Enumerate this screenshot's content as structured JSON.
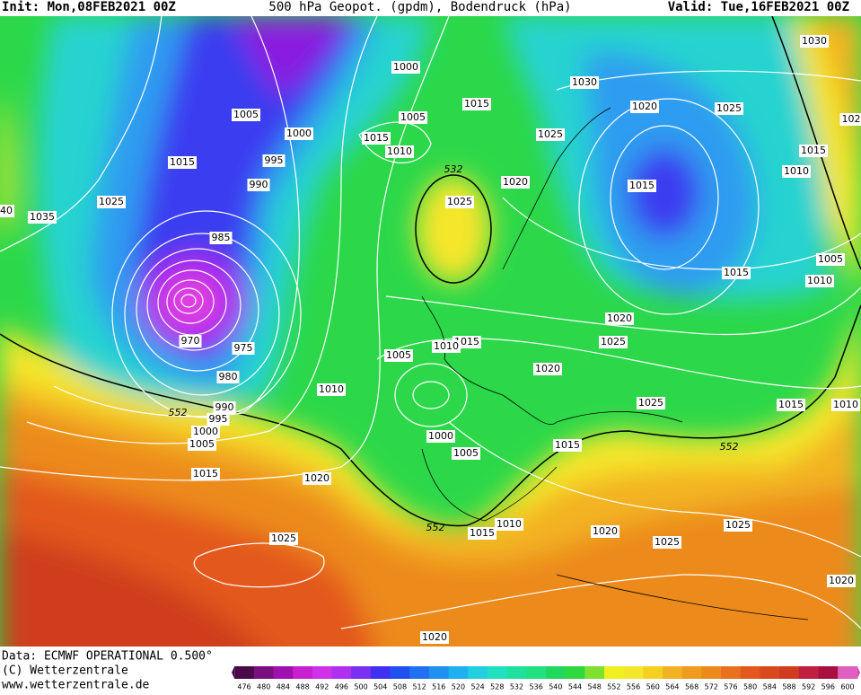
{
  "header": {
    "init": "Init: Mon,08FEB2021 00Z",
    "title": "500 hPa Geopot. (gpdm), Bodendruck (hPa)",
    "valid": "Valid: Tue,16FEB2021 00Z"
  },
  "isobar_labels": [
    "1000",
    "1030",
    "1030",
    "1005",
    "1015",
    "1020",
    "1025",
    "102",
    "1005",
    "1000",
    "1015",
    "1010",
    "1025",
    "1015",
    "1015",
    "995",
    "1010",
    "532",
    "1020",
    "990",
    "1015",
    "1025",
    "1025",
    "40",
    "1035",
    "985",
    "1005",
    "1015",
    "1010",
    "970",
    "1020",
    "1015",
    "1010",
    "1025",
    "975",
    "1005",
    "1020",
    "980",
    "1010",
    "1025",
    "1015",
    "1010",
    "552",
    "990",
    "995",
    "1000",
    "1005",
    "1000",
    "1015",
    "552",
    "1005",
    "1015",
    "1020",
    "1010",
    "552",
    "1015",
    "1020",
    "1025",
    "1025",
    "1025",
    "1020",
    "1020"
  ],
  "footer": {
    "data": "Data: ECMWF OPERATIONAL 0.500°",
    "copyright": "(C) Wetterzentrale",
    "url": "www.wetterzentrale.de"
  },
  "color_scale": {
    "labels": [
      476,
      480,
      484,
      488,
      492,
      496,
      500,
      504,
      508,
      512,
      516,
      520,
      524,
      528,
      532,
      536,
      540,
      544,
      548,
      552,
      556,
      560,
      564,
      568,
      572,
      576,
      580,
      584,
      588,
      592,
      596,
      600
    ]
  }
}
